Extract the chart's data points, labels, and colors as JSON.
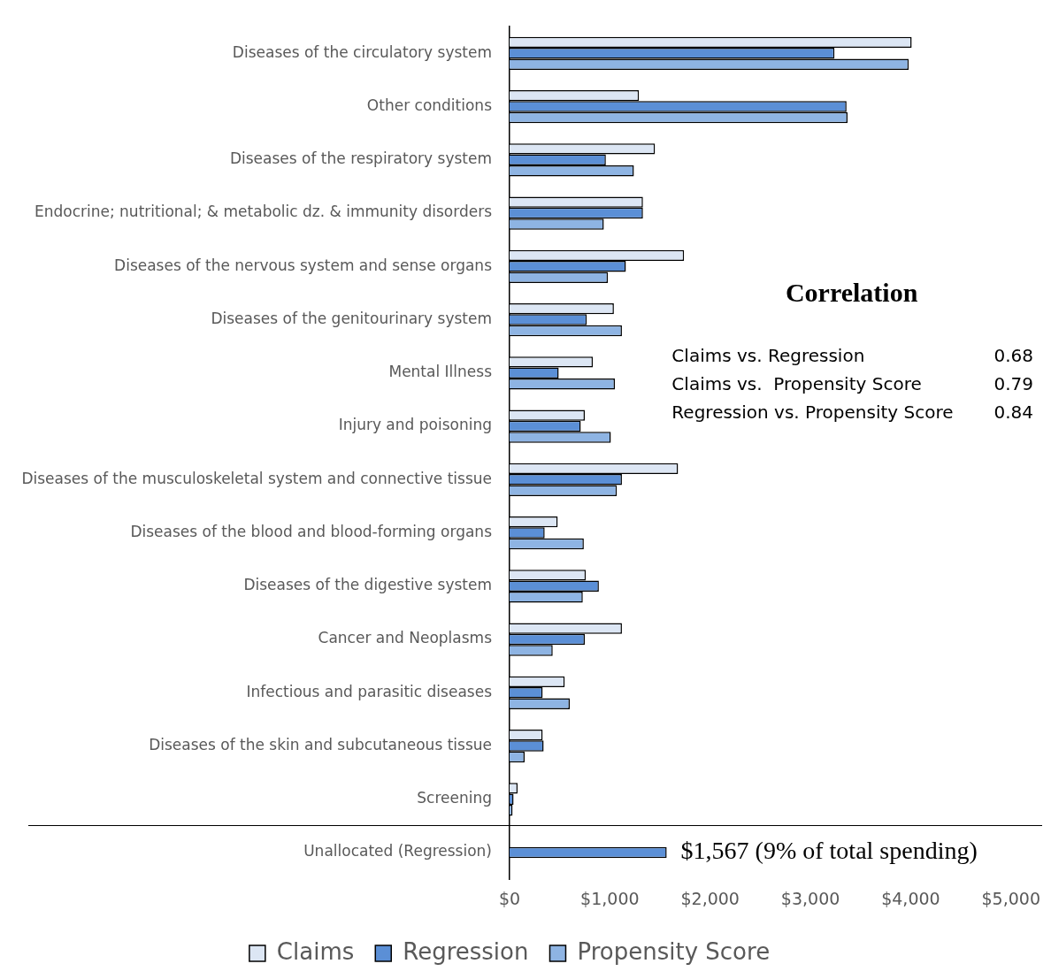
{
  "chart_data": {
    "type": "bar",
    "orientation": "horizontal",
    "categories": [
      "Diseases of the circulatory system",
      "Other conditions",
      "Diseases of the respiratory system",
      "Endocrine; nutritional; & metabolic dz. & immunity disorders",
      "Diseases of the nervous system and sense organs",
      "Diseases of the genitourinary system",
      "Mental Illness",
      "Injury and poisoning",
      "Diseases of the musculoskeletal system and connective tissue",
      "Diseases of the blood and blood-forming organs",
      "Diseases of the digestive system",
      "Cancer and Neoplasms",
      "Infectious and parasitic diseases",
      "Diseases of the skin and subcutaneous tissue",
      "Screening",
      "Unallocated (Regression)"
    ],
    "series": [
      {
        "name": "Claims",
        "color": "#dce6f4",
        "values": [
          4010,
          1290,
          1450,
          1330,
          1740,
          1040,
          830,
          750,
          1680,
          480,
          760,
          1120,
          550,
          330,
          80,
          null
        ]
      },
      {
        "name": "Regression",
        "color": "#5b8fd6",
        "values": [
          3240,
          3360,
          960,
          1330,
          1160,
          770,
          490,
          710,
          1120,
          350,
          890,
          750,
          330,
          340,
          40,
          1567
        ],
        "value_labels": [
          null,
          null,
          null,
          null,
          null,
          null,
          null,
          null,
          null,
          null,
          null,
          null,
          null,
          null,
          null,
          "$1,567 (9% of total spending)"
        ]
      },
      {
        "name": "Propensity Score",
        "color": "#8eb4e3",
        "values": [
          3980,
          3370,
          1240,
          940,
          980,
          1120,
          1050,
          1010,
          1070,
          740,
          730,
          430,
          600,
          150,
          30,
          null
        ]
      }
    ],
    "xlim": [
      0,
      5000
    ],
    "xticks": [
      {
        "value": 0,
        "label": "$0"
      },
      {
        "value": 1000,
        "label": "$1,000"
      },
      {
        "value": 2000,
        "label": "$2,000"
      },
      {
        "value": 3000,
        "label": "$3,000"
      },
      {
        "value": 4000,
        "label": "$4,000"
      },
      {
        "value": 5000,
        "label": "$5,000"
      }
    ],
    "legend": "bottom",
    "annotations": [
      "Correlation",
      "Claims vs. Regression",
      "0.68",
      "Claims vs.  Propensity Score",
      "0.79",
      "Regression vs. Propensity Score",
      "0.84"
    ]
  }
}
